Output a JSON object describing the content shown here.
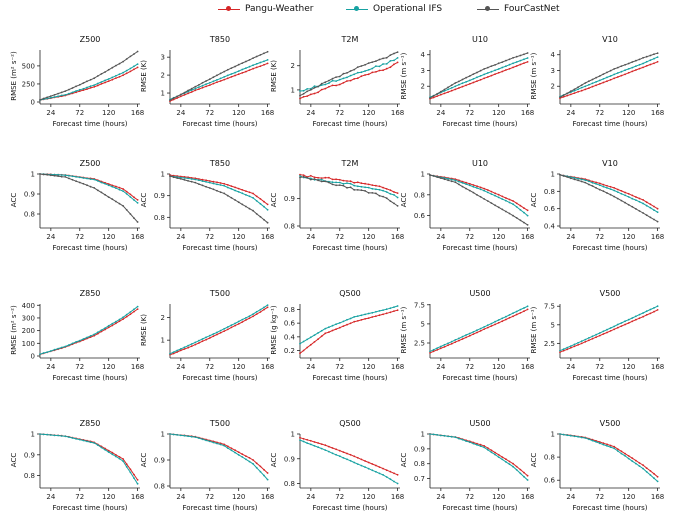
{
  "legend": {
    "items": [
      {
        "name": "Pangu-Weather",
        "color": "#d62728"
      },
      {
        "name": "Operational IFS",
        "color": "#17a2a2"
      },
      {
        "name": "FourCastNet",
        "color": "#555555"
      }
    ]
  },
  "chart_data": [
    {
      "type": "line",
      "title": "Z500",
      "xlabel": "Forecast time (hours)",
      "ylabel": "RMSE (m² s⁻²)",
      "xticks": [
        24,
        72,
        120,
        168
      ],
      "yticks": [
        0,
        250,
        500
      ],
      "ylim": [
        0,
        720
      ],
      "x": [
        6,
        48,
        96,
        144,
        168
      ],
      "series": [
        {
          "name": "Pangu-Weather",
          "values": [
            25,
            90,
            210,
            370,
            480
          ]
        },
        {
          "name": "Operational IFS",
          "values": [
            28,
            100,
            235,
            405,
            525
          ]
        },
        {
          "name": "FourCastNet",
          "values": [
            30,
            150,
            330,
            560,
            700
          ]
        }
      ]
    },
    {
      "type": "line",
      "title": "T850",
      "xlabel": "Forecast time (hours)",
      "ylabel": "RMSE (K)",
      "xticks": [
        24,
        72,
        120,
        168
      ],
      "yticks": [
        1,
        2,
        3
      ],
      "ylim": [
        0.5,
        3.4
      ],
      "x": [
        6,
        48,
        96,
        144,
        168
      ],
      "series": [
        {
          "name": "Pangu-Weather",
          "values": [
            0.55,
            1.15,
            1.75,
            2.35,
            2.65
          ]
        },
        {
          "name": "Operational IFS",
          "values": [
            0.65,
            1.25,
            1.9,
            2.55,
            2.85
          ]
        },
        {
          "name": "FourCastNet",
          "values": [
            0.6,
            1.35,
            2.2,
            2.95,
            3.3
          ]
        }
      ]
    },
    {
      "type": "line",
      "title": "T2M",
      "xlabel": "Forecast time (hours)",
      "ylabel": "RMSE (K)",
      "xticks": [
        24,
        72,
        120,
        168
      ],
      "yticks": [
        1,
        2
      ],
      "ylim": [
        0.5,
        2.65
      ],
      "x": [
        6,
        48,
        96,
        144,
        168
      ],
      "series": [
        {
          "name": "Pangu-Weather",
          "values": [
            0.65,
            1.05,
            1.45,
            1.85,
            2.1
          ]
        },
        {
          "name": "Operational IFS",
          "values": [
            0.95,
            1.25,
            1.65,
            2.05,
            2.3
          ]
        },
        {
          "name": "FourCastNet",
          "values": [
            0.75,
            1.3,
            1.85,
            2.3,
            2.55
          ]
        }
      ]
    },
    {
      "type": "line",
      "title": "U10",
      "xlabel": "Forecast time (hours)",
      "ylabel": "RMSE (m s⁻¹)",
      "xticks": [
        24,
        72,
        120,
        168
      ],
      "yticks": [
        2,
        3,
        4
      ],
      "ylim": [
        1,
        4.3
      ],
      "x": [
        6,
        48,
        96,
        144,
        168
      ],
      "series": [
        {
          "name": "Pangu-Weather",
          "values": [
            1.2,
            1.8,
            2.5,
            3.2,
            3.55
          ]
        },
        {
          "name": "Operational IFS",
          "values": [
            1.3,
            2.0,
            2.75,
            3.45,
            3.8
          ]
        },
        {
          "name": "FourCastNet",
          "values": [
            1.25,
            2.2,
            3.1,
            3.8,
            4.1
          ]
        }
      ]
    },
    {
      "type": "line",
      "title": "V10",
      "xlabel": "Forecast time (hours)",
      "ylabel": "RMSE (m s⁻¹)",
      "xticks": [
        24,
        72,
        120,
        168
      ],
      "yticks": [
        2,
        3,
        4
      ],
      "ylim": [
        1,
        4.3
      ],
      "x": [
        6,
        48,
        96,
        144,
        168
      ],
      "series": [
        {
          "name": "Pangu-Weather",
          "values": [
            1.25,
            1.8,
            2.5,
            3.2,
            3.55
          ]
        },
        {
          "name": "Operational IFS",
          "values": [
            1.35,
            2.0,
            2.75,
            3.45,
            3.85
          ]
        },
        {
          "name": "FourCastNet",
          "values": [
            1.3,
            2.2,
            3.1,
            3.8,
            4.1
          ]
        }
      ]
    },
    {
      "type": "line",
      "title": "Z500",
      "xlabel": "Forecast time (hours)",
      "ylabel": "ACC",
      "xticks": [
        24,
        72,
        120,
        168
      ],
      "yticks": [
        0.8,
        0.9,
        1.0
      ],
      "ylim": [
        0.74,
        1.0
      ],
      "x": [
        6,
        48,
        96,
        144,
        168
      ],
      "series": [
        {
          "name": "Pangu-Weather",
          "values": [
            1.0,
            0.995,
            0.975,
            0.925,
            0.87
          ]
        },
        {
          "name": "Operational IFS",
          "values": [
            1.0,
            0.994,
            0.972,
            0.915,
            0.855
          ]
        },
        {
          "name": "FourCastNet",
          "values": [
            1.0,
            0.985,
            0.93,
            0.84,
            0.76
          ]
        }
      ]
    },
    {
      "type": "line",
      "title": "T850",
      "xlabel": "Forecast time (hours)",
      "ylabel": "ACC",
      "xticks": [
        24,
        72,
        120,
        168
      ],
      "yticks": [
        0.8,
        0.9,
        1.0
      ],
      "ylim": [
        0.76,
        1.0
      ],
      "x": [
        6,
        48,
        96,
        144,
        168
      ],
      "series": [
        {
          "name": "Pangu-Weather",
          "values": [
            0.995,
            0.98,
            0.955,
            0.91,
            0.86
          ]
        },
        {
          "name": "Operational IFS",
          "values": [
            0.99,
            0.975,
            0.945,
            0.89,
            0.835
          ]
        },
        {
          "name": "FourCastNet",
          "values": [
            0.99,
            0.96,
            0.91,
            0.83,
            0.775
          ]
        }
      ]
    },
    {
      "type": "line",
      "title": "T2M",
      "xlabel": "Forecast time (hours)",
      "ylabel": "ACC",
      "xticks": [
        24,
        72,
        120,
        168
      ],
      "yticks": [
        0.8,
        0.9
      ],
      "ylim": [
        0.8,
        0.99
      ],
      "x": [
        6,
        48,
        96,
        144,
        168
      ],
      "series": [
        {
          "name": "Pangu-Weather",
          "values": [
            0.985,
            0.975,
            0.96,
            0.94,
            0.92
          ]
        },
        {
          "name": "Operational IFS",
          "values": [
            0.98,
            0.965,
            0.95,
            0.93,
            0.905
          ]
        },
        {
          "name": "FourCastNet",
          "values": [
            0.98,
            0.96,
            0.935,
            0.91,
            0.875
          ]
        }
      ]
    },
    {
      "type": "line",
      "title": "U10",
      "xlabel": "Forecast time (hours)",
      "ylabel": "ACC",
      "xticks": [
        24,
        72,
        120,
        168
      ],
      "yticks": [
        0.6,
        0.8,
        1.0
      ],
      "ylim": [
        0.5,
        1.0
      ],
      "x": [
        6,
        48,
        96,
        144,
        168
      ],
      "series": [
        {
          "name": "Pangu-Weather",
          "values": [
            0.99,
            0.95,
            0.86,
            0.74,
            0.65
          ]
        },
        {
          "name": "Operational IFS",
          "values": [
            0.99,
            0.94,
            0.84,
            0.71,
            0.6
          ]
        },
        {
          "name": "FourCastNet",
          "values": [
            0.99,
            0.92,
            0.76,
            0.6,
            0.51
          ]
        }
      ]
    },
    {
      "type": "line",
      "title": "V10",
      "xlabel": "Forecast time (hours)",
      "ylabel": "ACC",
      "xticks": [
        24,
        72,
        120,
        168
      ],
      "yticks": [
        0.4,
        0.6,
        0.8,
        1.0
      ],
      "ylim": [
        0.4,
        1.0
      ],
      "x": [
        6,
        48,
        96,
        144,
        168
      ],
      "series": [
        {
          "name": "Pangu-Weather",
          "values": [
            0.99,
            0.94,
            0.84,
            0.7,
            0.6
          ]
        },
        {
          "name": "Operational IFS",
          "values": [
            0.99,
            0.93,
            0.81,
            0.66,
            0.56
          ]
        },
        {
          "name": "FourCastNet",
          "values": [
            0.99,
            0.9,
            0.74,
            0.55,
            0.45
          ]
        }
      ]
    },
    {
      "type": "line",
      "title": "Z850",
      "xlabel": "Forecast time (hours)",
      "ylabel": "RMSE (m² s⁻²)",
      "xticks": [
        24,
        72,
        120,
        168
      ],
      "yticks": [
        0,
        100,
        200,
        300,
        400
      ],
      "ylim": [
        0,
        410
      ],
      "x": [
        6,
        48,
        96,
        144,
        168
      ],
      "series": [
        {
          "name": "Pangu-Weather",
          "values": [
            12,
            70,
            160,
            290,
            370
          ]
        },
        {
          "name": "Operational IFS",
          "values": [
            14,
            75,
            170,
            305,
            390
          ]
        }
      ]
    },
    {
      "type": "line",
      "title": "T500",
      "xlabel": "Forecast time (hours)",
      "ylabel": "RMSE (K)",
      "xticks": [
        24,
        72,
        120,
        168
      ],
      "yticks": [
        1,
        2
      ],
      "ylim": [
        0.3,
        2.6
      ],
      "x": [
        6,
        48,
        96,
        144,
        168
      ],
      "series": [
        {
          "name": "Pangu-Weather",
          "values": [
            0.35,
            0.8,
            1.4,
            2.05,
            2.45
          ]
        },
        {
          "name": "Operational IFS",
          "values": [
            0.4,
            0.9,
            1.5,
            2.15,
            2.55
          ]
        }
      ]
    },
    {
      "type": "line",
      "title": "Q500",
      "xlabel": "Forecast time (hours)",
      "ylabel": "RMSE (g kg⁻¹)",
      "xticks": [
        24,
        72,
        120,
        168
      ],
      "yticks": [
        0.2,
        0.4,
        0.6,
        0.8
      ],
      "ylim": [
        0.12,
        0.88
      ],
      "x": [
        6,
        48,
        96,
        144,
        168
      ],
      "series": [
        {
          "name": "Pangu-Weather",
          "values": [
            0.16,
            0.45,
            0.62,
            0.73,
            0.79
          ]
        },
        {
          "name": "Operational IFS",
          "values": [
            0.3,
            0.52,
            0.69,
            0.79,
            0.85
          ]
        }
      ]
    },
    {
      "type": "line",
      "title": "U500",
      "xlabel": "Forecast time (hours)",
      "ylabel": "RMSE (m s⁻¹)",
      "xticks": [
        24,
        72,
        120,
        168
      ],
      "yticks": [
        2.5,
        5.0,
        7.5
      ],
      "ylim": [
        0.8,
        7.6
      ],
      "x": [
        6,
        48,
        96,
        144,
        168
      ],
      "series": [
        {
          "name": "Pangu-Weather",
          "values": [
            1.2,
            2.6,
            4.3,
            6.0,
            6.9
          ]
        },
        {
          "name": "Operational IFS",
          "values": [
            1.4,
            2.9,
            4.6,
            6.4,
            7.3
          ]
        }
      ]
    },
    {
      "type": "line",
      "title": "V500",
      "xlabel": "Forecast time (hours)",
      "ylabel": "RMSE (m s⁻¹)",
      "xticks": [
        24,
        72,
        120,
        168
      ],
      "yticks": [
        2.5,
        5.0,
        7.5
      ],
      "ylim": [
        0.8,
        7.8
      ],
      "x": [
        6,
        48,
        96,
        144,
        168
      ],
      "series": [
        {
          "name": "Pangu-Weather",
          "values": [
            1.3,
            2.7,
            4.4,
            6.1,
            7.0
          ]
        },
        {
          "name": "Operational IFS",
          "values": [
            1.5,
            3.0,
            4.8,
            6.6,
            7.5
          ]
        }
      ]
    },
    {
      "type": "line",
      "title": "Z850",
      "xlabel": "Forecast time (hours)",
      "ylabel": "ACC",
      "xticks": [
        24,
        72,
        120,
        168
      ],
      "yticks": [
        0.8,
        0.9,
        1.0
      ],
      "ylim": [
        0.75,
        1.0
      ],
      "x": [
        6,
        48,
        96,
        144,
        168
      ],
      "series": [
        {
          "name": "Pangu-Weather",
          "values": [
            1.0,
            0.99,
            0.96,
            0.88,
            0.78
          ]
        },
        {
          "name": "Operational IFS",
          "values": [
            1.0,
            0.989,
            0.957,
            0.87,
            0.76
          ]
        }
      ]
    },
    {
      "type": "line",
      "title": "T500",
      "xlabel": "Forecast time (hours)",
      "ylabel": "ACC",
      "xticks": [
        24,
        72,
        120,
        168
      ],
      "yticks": [
        0.8,
        0.9,
        1.0
      ],
      "ylim": [
        0.8,
        1.0
      ],
      "x": [
        6,
        48,
        96,
        144,
        168
      ],
      "series": [
        {
          "name": "Pangu-Weather",
          "values": [
            1.0,
            0.99,
            0.96,
            0.9,
            0.85
          ]
        },
        {
          "name": "Operational IFS",
          "values": [
            1.0,
            0.988,
            0.955,
            0.885,
            0.825
          ]
        }
      ]
    },
    {
      "type": "line",
      "title": "Q500",
      "xlabel": "Forecast time (hours)",
      "ylabel": "ACC",
      "xticks": [
        24,
        72,
        120,
        168
      ],
      "yticks": [
        0.8,
        0.9,
        1.0
      ],
      "ylim": [
        0.79,
        1.0
      ],
      "x": [
        6,
        48,
        96,
        144,
        168
      ],
      "series": [
        {
          "name": "Pangu-Weather",
          "values": [
            0.985,
            0.955,
            0.91,
            0.86,
            0.835
          ]
        },
        {
          "name": "Operational IFS",
          "values": [
            0.975,
            0.935,
            0.885,
            0.835,
            0.8
          ]
        }
      ]
    },
    {
      "type": "line",
      "title": "U500",
      "xlabel": "Forecast time (hours)",
      "ylabel": "ACC",
      "xticks": [
        24,
        72,
        120,
        168
      ],
      "yticks": [
        0.7,
        0.8,
        0.9,
        1.0
      ],
      "ylim": [
        0.65,
        1.0
      ],
      "x": [
        6,
        48,
        96,
        144,
        168
      ],
      "series": [
        {
          "name": "Pangu-Weather",
          "values": [
            1.0,
            0.98,
            0.92,
            0.8,
            0.72
          ]
        },
        {
          "name": "Operational IFS",
          "values": [
            1.0,
            0.978,
            0.91,
            0.78,
            0.69
          ]
        }
      ]
    },
    {
      "type": "line",
      "title": "V500",
      "xlabel": "Forecast time (hours)",
      "ylabel": "ACC",
      "xticks": [
        24,
        72,
        120,
        168
      ],
      "yticks": [
        0.6,
        0.8,
        1.0
      ],
      "ylim": [
        0.55,
        1.0
      ],
      "x": [
        6,
        48,
        96,
        144,
        168
      ],
      "series": [
        {
          "name": "Pangu-Weather",
          "values": [
            1.0,
            0.97,
            0.89,
            0.73,
            0.63
          ]
        },
        {
          "name": "Operational IFS",
          "values": [
            1.0,
            0.965,
            0.875,
            0.7,
            0.59
          ]
        }
      ]
    }
  ]
}
